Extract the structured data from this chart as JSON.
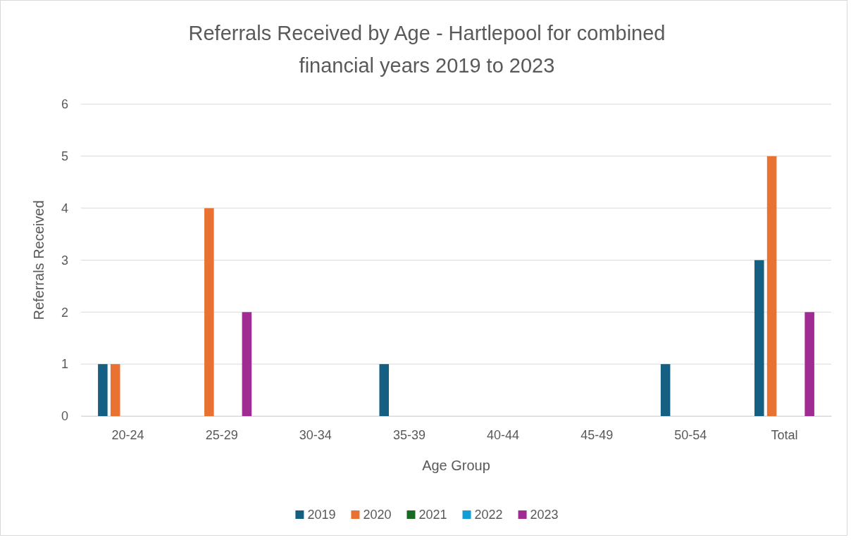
{
  "chart_data": {
    "type": "bar",
    "title": "Referrals Received by Age - Hartlepool for combined financial years 2019 to 2023",
    "xlabel": "Age Group",
    "ylabel": "Referrals Received",
    "categories": [
      "20-24",
      "25-29",
      "30-34",
      "35-39",
      "40-44",
      "45-49",
      "50-54",
      "Total"
    ],
    "series": [
      {
        "name": "2019",
        "color": "#156082",
        "values": [
          1,
          0,
          0,
          1,
          0,
          0,
          1,
          3
        ]
      },
      {
        "name": "2020",
        "color": "#e97132",
        "values": [
          1,
          4,
          0,
          0,
          0,
          0,
          0,
          5
        ]
      },
      {
        "name": "2021",
        "color": "#196b24",
        "values": [
          0,
          0,
          0,
          0,
          0,
          0,
          0,
          0
        ]
      },
      {
        "name": "2022",
        "color": "#0f9ed5",
        "values": [
          0,
          0,
          0,
          0,
          0,
          0,
          0,
          0
        ]
      },
      {
        "name": "2023",
        "color": "#a02b93",
        "values": [
          0,
          2,
          0,
          0,
          0,
          0,
          0,
          2
        ]
      }
    ],
    "ylim": [
      0,
      6
    ],
    "yticks": [
      0,
      1,
      2,
      3,
      4,
      5,
      6
    ],
    "grid": "y",
    "legend": "bottom"
  }
}
